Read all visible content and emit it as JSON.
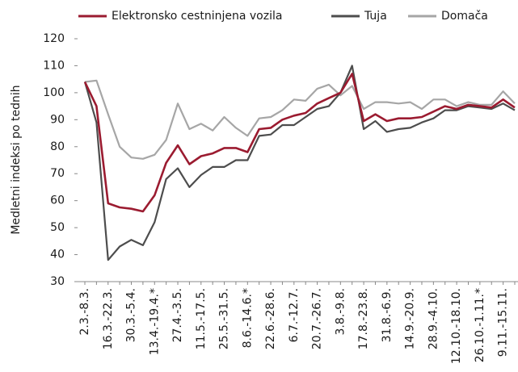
{
  "chart_data": {
    "type": "line",
    "y_label": "Medletni indeksi po tednih",
    "categories": [
      "2.3.-8.3.",
      null,
      "16.3.-22.3.",
      null,
      "30.3.-5.4.",
      null,
      "13.4.-19.4.*",
      null,
      "27.4.-3.5.",
      null,
      "11.5.-17.5.",
      null,
      "25.5.-31.5.",
      null,
      "8.6.-14.6.*",
      null,
      "22.6.-28.6.",
      null,
      "6.7.-12.7.",
      null,
      "20.7.-26.7.",
      null,
      "3.8.-9.8.",
      null,
      "17.8.-23.8.",
      null,
      "31.8.-6.9.",
      null,
      "14.9.-20.9.",
      null,
      "28.9.-4.10.",
      null,
      "12.10.-18.10.",
      null,
      "26.10.-1.11.*",
      null,
      "9.11.-15.11.",
      null
    ],
    "series": [
      {
        "name": "Elektronsko cestninjena vozila",
        "color": "#9b1b30",
        "values": [
          104,
          95,
          59,
          57.5,
          57,
          56,
          62,
          74,
          80.5,
          73.5,
          76.5,
          77.5,
          79.5,
          79.5,
          78,
          86.5,
          87,
          90,
          91.5,
          92.5,
          96,
          98,
          100,
          107,
          89.5,
          92,
          89.5,
          90.5,
          90.5,
          91,
          93,
          95,
          94,
          95.5,
          95,
          94.5,
          97.5,
          94.5
        ]
      },
      {
        "name": "Tuja",
        "color": "#4d4d4d",
        "values": [
          104,
          89,
          38,
          43,
          45.5,
          43.5,
          52,
          68,
          72,
          65,
          69.5,
          72.5,
          72.5,
          75,
          75,
          84,
          84.5,
          88,
          88,
          91,
          94,
          95,
          100,
          110,
          86.5,
          89.5,
          85.5,
          86.5,
          87,
          89,
          90.5,
          93.5,
          93.5,
          95,
          94.5,
          94,
          96,
          93.5
        ]
      },
      {
        "name": "Domača",
        "color": "#a6a6a6",
        "values": [
          104,
          104.5,
          92,
          80,
          76,
          75.5,
          77,
          82.5,
          96,
          86.5,
          88.5,
          86,
          91,
          87,
          84,
          90.5,
          91,
          93.5,
          97.5,
          97,
          101.5,
          103,
          99,
          102.5,
          94,
          96.5,
          96.5,
          96,
          96.5,
          94,
          97.5,
          97.5,
          95,
          96.5,
          95.5,
          95.5,
          100.5,
          96
        ]
      }
    ],
    "ylim": [
      30,
      120
    ],
    "yticks": [
      30,
      40,
      50,
      60,
      70,
      80,
      90,
      100,
      110,
      120
    ]
  }
}
